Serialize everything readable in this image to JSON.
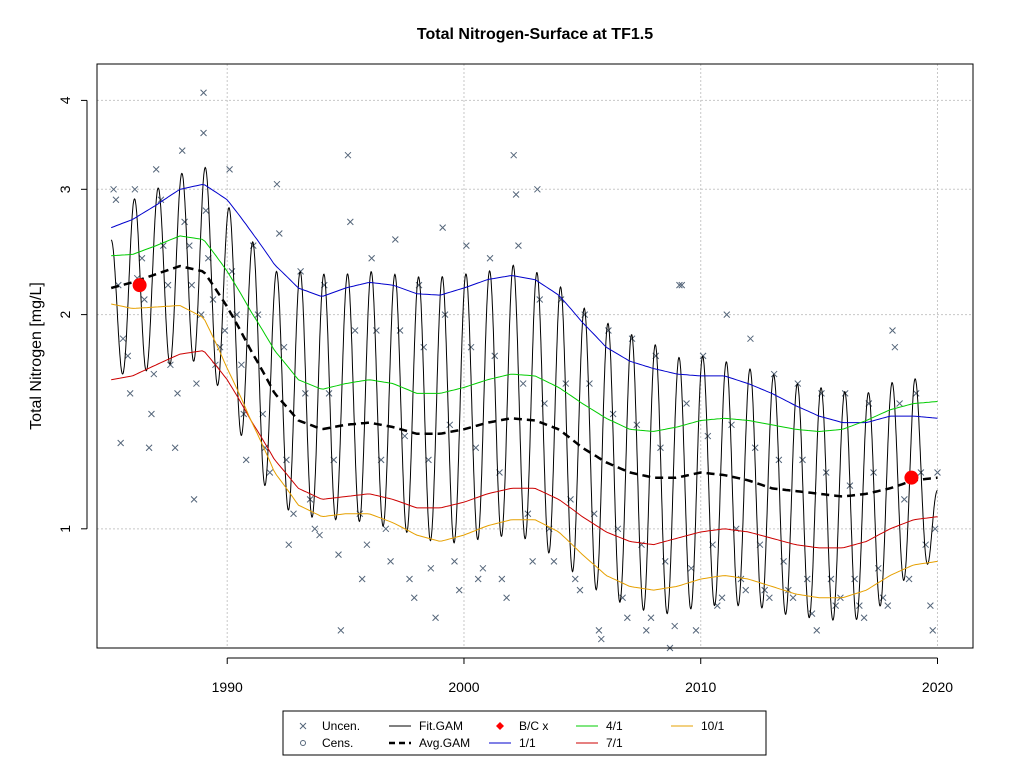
{
  "chart_data": {
    "type": "line",
    "title": "Total Nitrogen-Surface at TF1.5",
    "xlabel": "",
    "ylabel": "Total Nitrogen [mg/L]",
    "y_scale": "log",
    "xlim": [
      1984.5,
      2021.5
    ],
    "ylim": [
      0.68,
      4.5
    ],
    "x_ticks": [
      1990,
      2000,
      2010,
      2020
    ],
    "y_ticks": [
      1,
      2,
      3,
      4
    ],
    "grid": true,
    "legend_position": "bottom-center",
    "legend": [
      {
        "label": "Uncen.",
        "symbol": "x",
        "color": "#55667a"
      },
      {
        "label": "Cens.",
        "symbol": "o",
        "color": "#55667a"
      },
      {
        "label": "Fit.GAM",
        "symbol": "line",
        "color": "#000000"
      },
      {
        "label": "Avg.GAM",
        "symbol": "dashed",
        "color": "#000000"
      },
      {
        "label": "B/C x",
        "symbol": "diamond",
        "color": "#ff0000"
      },
      {
        "label": "1/1",
        "symbol": "line",
        "color": "#0000cc"
      },
      {
        "label": "4/1",
        "symbol": "line",
        "color": "#00cc00"
      },
      {
        "label": "7/1",
        "symbol": "line",
        "color": "#cc0000"
      },
      {
        "label": "10/1",
        "symbol": "line",
        "color": "#e6a000"
      }
    ],
    "series": [
      {
        "name": "Avg.GAM",
        "color": "#000000",
        "style": "dashed",
        "x": [
          1985.1,
          1986,
          1987,
          1988,
          1989,
          1990,
          1991,
          1992,
          1993,
          1994,
          1995,
          1996,
          1997,
          1998,
          1999,
          2000,
          2001,
          2002,
          2003,
          2004,
          2005,
          2006,
          2007,
          2008,
          2009,
          2010,
          2011,
          2012,
          2013,
          2014,
          2015,
          2016,
          2017,
          2018,
          2019,
          2020
        ],
        "y": [
          2.18,
          2.22,
          2.28,
          2.34,
          2.3,
          2.05,
          1.78,
          1.55,
          1.42,
          1.38,
          1.4,
          1.41,
          1.39,
          1.36,
          1.36,
          1.38,
          1.41,
          1.43,
          1.42,
          1.38,
          1.3,
          1.24,
          1.2,
          1.18,
          1.18,
          1.2,
          1.19,
          1.17,
          1.14,
          1.13,
          1.12,
          1.11,
          1.12,
          1.14,
          1.17,
          1.18
        ]
      },
      {
        "name": "1/1",
        "color": "#0000cc",
        "style": "solid",
        "x": [
          1985.1,
          1986,
          1987,
          1988,
          1989,
          1990,
          1991,
          1992,
          1993,
          1994,
          1995,
          1996,
          1997,
          1998,
          1999,
          2000,
          2001,
          2002,
          2003,
          2004,
          2005,
          2006,
          2007,
          2008,
          2009,
          2010,
          2011,
          2012,
          2013,
          2014,
          2015,
          2016,
          2017,
          2018,
          2019,
          2020
        ],
        "y": [
          2.65,
          2.72,
          2.85,
          3.0,
          3.05,
          2.9,
          2.62,
          2.35,
          2.18,
          2.12,
          2.18,
          2.22,
          2.2,
          2.14,
          2.13,
          2.18,
          2.24,
          2.27,
          2.24,
          2.13,
          1.95,
          1.8,
          1.72,
          1.68,
          1.65,
          1.64,
          1.64,
          1.6,
          1.55,
          1.49,
          1.44,
          1.41,
          1.41,
          1.44,
          1.44,
          1.43
        ]
      },
      {
        "name": "4/1",
        "color": "#00cc00",
        "style": "solid",
        "x": [
          1985.1,
          1986,
          1987,
          1988,
          1989,
          1990,
          1991,
          1992,
          1993,
          1994,
          1995,
          1996,
          1997,
          1998,
          1999,
          2000,
          2001,
          2002,
          2003,
          2004,
          2005,
          2006,
          2007,
          2008,
          2009,
          2010,
          2011,
          2012,
          2013,
          2014,
          2015,
          2016,
          2017,
          2018,
          2019,
          2020
        ],
        "y": [
          2.42,
          2.43,
          2.5,
          2.58,
          2.55,
          2.3,
          2.02,
          1.78,
          1.62,
          1.57,
          1.6,
          1.62,
          1.6,
          1.55,
          1.55,
          1.58,
          1.62,
          1.65,
          1.64,
          1.58,
          1.5,
          1.43,
          1.38,
          1.37,
          1.39,
          1.42,
          1.43,
          1.42,
          1.4,
          1.38,
          1.37,
          1.38,
          1.42,
          1.47,
          1.5,
          1.51
        ]
      },
      {
        "name": "7/1",
        "color": "#cc0000",
        "style": "solid",
        "x": [
          1985.1,
          1986,
          1987,
          1988,
          1989,
          1990,
          1991,
          1992,
          1993,
          1994,
          1995,
          1996,
          1997,
          1998,
          1999,
          2000,
          2001,
          2002,
          2003,
          2004,
          2005,
          2006,
          2007,
          2008,
          2009,
          2010,
          2011,
          2012,
          2013,
          2014,
          2015,
          2016,
          2017,
          2018,
          2019,
          2020
        ],
        "y": [
          1.62,
          1.64,
          1.7,
          1.76,
          1.78,
          1.62,
          1.42,
          1.25,
          1.14,
          1.1,
          1.11,
          1.12,
          1.1,
          1.07,
          1.07,
          1.09,
          1.12,
          1.14,
          1.14,
          1.1,
          1.04,
          0.99,
          0.96,
          0.95,
          0.97,
          0.99,
          1.0,
          0.99,
          0.97,
          0.95,
          0.94,
          0.94,
          0.96,
          1.0,
          1.03,
          1.04
        ]
      },
      {
        "name": "10/1",
        "color": "#e6a000",
        "style": "solid",
        "x": [
          1985.1,
          1986,
          1987,
          1988,
          1989,
          1990,
          1991,
          1992,
          1993,
          1994,
          1995,
          1996,
          1997,
          1998,
          1999,
          2000,
          2001,
          2002,
          2003,
          2004,
          2005,
          2006,
          2007,
          2008,
          2009,
          2010,
          2011,
          2012,
          2013,
          2014,
          2015,
          2016,
          2017,
          2018,
          2019,
          2020
        ],
        "y": [
          2.07,
          2.04,
          2.05,
          2.06,
          1.98,
          1.68,
          1.42,
          1.2,
          1.08,
          1.04,
          1.05,
          1.05,
          1.02,
          0.98,
          0.96,
          0.98,
          1.01,
          1.03,
          1.03,
          0.99,
          0.92,
          0.86,
          0.83,
          0.82,
          0.83,
          0.85,
          0.86,
          0.85,
          0.83,
          0.81,
          0.8,
          0.8,
          0.82,
          0.86,
          0.89,
          0.9
        ]
      }
    ],
    "fit_gam": {
      "name": "Fit.GAM",
      "color": "#000000",
      "x_start": 1985.1,
      "x_end": 2020.0,
      "peak_day_of_year": 30,
      "x": [
        1985.1,
        1986,
        1987,
        1988,
        1989,
        1990,
        1991,
        1992,
        1993,
        1994,
        1995,
        1996,
        1997,
        1998,
        1999,
        2000,
        2001,
        2002,
        2003,
        2004,
        2005,
        2006,
        2007,
        2008,
        2009,
        2010,
        2011,
        2012,
        2013,
        2014,
        2015,
        2016,
        2017,
        2018,
        2019,
        2020
      ],
      "max": [
        2.55,
        2.9,
        3.0,
        3.15,
        3.25,
        2.85,
        2.55,
        2.3,
        2.3,
        2.28,
        2.28,
        2.3,
        2.28,
        2.26,
        2.26,
        2.28,
        2.3,
        2.35,
        2.3,
        2.2,
        2.05,
        1.95,
        1.88,
        1.82,
        1.74,
        1.75,
        1.72,
        1.68,
        1.65,
        1.6,
        1.58,
        1.56,
        1.55,
        1.6,
        1.66,
        1.15
      ],
      "min": [
        1.65,
        1.65,
        1.68,
        1.72,
        1.72,
        1.5,
        1.25,
        1.08,
        1.05,
        1.03,
        1.03,
        1.02,
        1.0,
        0.98,
        0.95,
        0.96,
        0.97,
        0.98,
        0.96,
        0.9,
        0.85,
        0.8,
        0.78,
        0.76,
        0.76,
        0.78,
        0.78,
        0.78,
        0.77,
        0.75,
        0.75,
        0.74,
        0.75,
        0.8,
        0.88,
        0.9
      ]
    },
    "bc_points": [
      {
        "x": 1986.3,
        "y": 2.2
      },
      {
        "x": 2018.9,
        "y": 1.18
      }
    ],
    "observations": [
      [
        1985.2,
        3.0
      ],
      [
        1985.3,
        2.9
      ],
      [
        1985.4,
        2.2
      ],
      [
        1985.5,
        1.32
      ],
      [
        1985.6,
        1.85
      ],
      [
        1985.8,
        1.75
      ],
      [
        1985.9,
        1.55
      ],
      [
        1986.1,
        3.0
      ],
      [
        1986.2,
        2.25
      ],
      [
        1986.4,
        2.4
      ],
      [
        1986.5,
        2.1
      ],
      [
        1986.7,
        1.3
      ],
      [
        1986.8,
        1.45
      ],
      [
        1986.9,
        1.65
      ],
      [
        1987.0,
        3.2
      ],
      [
        1987.2,
        2.9
      ],
      [
        1987.3,
        2.5
      ],
      [
        1987.5,
        2.2
      ],
      [
        1987.6,
        1.7
      ],
      [
        1987.8,
        1.3
      ],
      [
        1987.9,
        1.55
      ],
      [
        1988.1,
        3.4
      ],
      [
        1988.2,
        2.7
      ],
      [
        1988.4,
        2.5
      ],
      [
        1988.5,
        2.2
      ],
      [
        1988.6,
        1.1
      ],
      [
        1988.7,
        1.6
      ],
      [
        1988.9,
        2.0
      ],
      [
        1989.0,
        4.1
      ],
      [
        1989.0,
        3.6
      ],
      [
        1989.1,
        2.8
      ],
      [
        1989.2,
        2.4
      ],
      [
        1989.4,
        2.1
      ],
      [
        1989.5,
        1.7
      ],
      [
        1989.7,
        1.8
      ],
      [
        1989.9,
        1.9
      ],
      [
        1990.1,
        3.2
      ],
      [
        1990.2,
        2.3
      ],
      [
        1990.4,
        2.0
      ],
      [
        1990.6,
        1.7
      ],
      [
        1990.7,
        1.45
      ],
      [
        1990.8,
        1.25
      ],
      [
        1991.1,
        2.5
      ],
      [
        1991.3,
        2.0
      ],
      [
        1991.5,
        1.45
      ],
      [
        1991.6,
        1.3
      ],
      [
        1991.8,
        1.2
      ],
      [
        1992.1,
        3.05
      ],
      [
        1992.2,
        2.6
      ],
      [
        1992.4,
        1.8
      ],
      [
        1992.5,
        1.25
      ],
      [
        1992.6,
        0.95
      ],
      [
        1992.8,
        1.05
      ],
      [
        1993.1,
        2.3
      ],
      [
        1993.3,
        1.55
      ],
      [
        1993.5,
        1.1
      ],
      [
        1993.7,
        1.0
      ],
      [
        1993.9,
        0.98
      ],
      [
        1994.1,
        2.2
      ],
      [
        1994.3,
        1.55
      ],
      [
        1994.5,
        1.25
      ],
      [
        1994.7,
        0.92
      ],
      [
        1994.8,
        0.72
      ],
      [
        1995.1,
        3.35
      ],
      [
        1995.2,
        2.7
      ],
      [
        1995.4,
        1.9
      ],
      [
        1995.6,
        1.05
      ],
      [
        1995.7,
        0.85
      ],
      [
        1995.9,
        0.95
      ],
      [
        1996.1,
        2.4
      ],
      [
        1996.3,
        1.9
      ],
      [
        1996.5,
        1.25
      ],
      [
        1996.7,
        1.0
      ],
      [
        1996.9,
        0.9
      ],
      [
        1997.1,
        2.55
      ],
      [
        1997.3,
        1.9
      ],
      [
        1997.5,
        1.35
      ],
      [
        1997.7,
        0.85
      ],
      [
        1997.9,
        0.8
      ],
      [
        1998.1,
        2.2
      ],
      [
        1998.3,
        1.8
      ],
      [
        1998.5,
        1.25
      ],
      [
        1998.6,
        0.88
      ],
      [
        1998.8,
        0.75
      ],
      [
        1999.1,
        2.65
      ],
      [
        1999.2,
        2.0
      ],
      [
        1999.4,
        1.4
      ],
      [
        1999.6,
        0.9
      ],
      [
        1999.8,
        0.82
      ],
      [
        2000.1,
        2.5
      ],
      [
        2000.3,
        1.8
      ],
      [
        2000.5,
        1.3
      ],
      [
        2000.6,
        0.85
      ],
      [
        2000.8,
        0.88
      ],
      [
        2001.1,
        2.4
      ],
      [
        2001.3,
        1.75
      ],
      [
        2001.5,
        1.2
      ],
      [
        2001.6,
        0.85
      ],
      [
        2001.8,
        0.8
      ],
      [
        2002.1,
        3.35
      ],
      [
        2002.2,
        2.95
      ],
      [
        2002.3,
        2.5
      ],
      [
        2002.5,
        1.6
      ],
      [
        2002.7,
        1.05
      ],
      [
        2002.9,
        0.9
      ],
      [
        2003.1,
        3.0
      ],
      [
        2003.2,
        2.1
      ],
      [
        2003.4,
        1.5
      ],
      [
        2003.6,
        1.0
      ],
      [
        2003.8,
        0.9
      ],
      [
        2004.1,
        2.1
      ],
      [
        2004.3,
        1.6
      ],
      [
        2004.5,
        1.1
      ],
      [
        2004.7,
        0.85
      ],
      [
        2004.9,
        0.82
      ],
      [
        2005.1,
        2.0
      ],
      [
        2005.3,
        1.6
      ],
      [
        2005.5,
        1.05
      ],
      [
        2005.7,
        0.72
      ],
      [
        2005.8,
        0.7
      ],
      [
        2006.1,
        1.9
      ],
      [
        2006.3,
        1.45
      ],
      [
        2006.5,
        1.0
      ],
      [
        2006.7,
        0.8
      ],
      [
        2006.9,
        0.75
      ],
      [
        2007.1,
        1.85
      ],
      [
        2007.3,
        1.4
      ],
      [
        2007.5,
        0.95
      ],
      [
        2007.7,
        0.72
      ],
      [
        2007.9,
        0.75
      ],
      [
        2008.1,
        1.75
      ],
      [
        2008.3,
        1.3
      ],
      [
        2008.5,
        0.9
      ],
      [
        2008.7,
        0.68
      ],
      [
        2008.9,
        0.73
      ],
      [
        2009.1,
        2.2
      ],
      [
        2009.2,
        2.2
      ],
      [
        2009.4,
        1.5
      ],
      [
        2009.6,
        0.88
      ],
      [
        2009.8,
        0.72
      ],
      [
        2010.1,
        1.75
      ],
      [
        2010.3,
        1.35
      ],
      [
        2010.5,
        0.95
      ],
      [
        2010.7,
        0.78
      ],
      [
        2010.9,
        0.8
      ],
      [
        2011.1,
        2.0
      ],
      [
        2011.3,
        1.4
      ],
      [
        2011.5,
        1.0
      ],
      [
        2011.7,
        0.85
      ],
      [
        2011.9,
        0.82
      ],
      [
        2012.1,
        1.85
      ],
      [
        2012.3,
        1.3
      ],
      [
        2012.5,
        0.95
      ],
      [
        2012.7,
        0.82
      ],
      [
        2012.9,
        0.8
      ],
      [
        2013.1,
        1.65
      ],
      [
        2013.3,
        1.25
      ],
      [
        2013.5,
        0.9
      ],
      [
        2013.7,
        0.82
      ],
      [
        2013.9,
        0.8
      ],
      [
        2014.1,
        1.6
      ],
      [
        2014.3,
        1.25
      ],
      [
        2014.5,
        0.85
      ],
      [
        2014.7,
        0.76
      ],
      [
        2014.9,
        0.72
      ],
      [
        2015.1,
        1.55
      ],
      [
        2015.3,
        1.2
      ],
      [
        2015.5,
        0.85
      ],
      [
        2015.7,
        0.78
      ],
      [
        2015.9,
        0.8
      ],
      [
        2016.1,
        1.55
      ],
      [
        2016.3,
        1.15
      ],
      [
        2016.5,
        0.85
      ],
      [
        2016.7,
        0.78
      ],
      [
        2016.9,
        0.75
      ],
      [
        2017.1,
        1.5
      ],
      [
        2017.3,
        1.2
      ],
      [
        2017.5,
        0.88
      ],
      [
        2017.7,
        0.8
      ],
      [
        2017.9,
        0.78
      ],
      [
        2018.1,
        1.9
      ],
      [
        2018.2,
        1.8
      ],
      [
        2018.4,
        1.5
      ],
      [
        2018.6,
        1.1
      ],
      [
        2018.8,
        0.85
      ],
      [
        2019.1,
        1.55
      ],
      [
        2019.3,
        1.2
      ],
      [
        2019.5,
        0.95
      ],
      [
        2019.7,
        0.78
      ],
      [
        2019.8,
        0.72
      ],
      [
        2019.9,
        1.0
      ],
      [
        2020.0,
        1.2
      ]
    ]
  }
}
